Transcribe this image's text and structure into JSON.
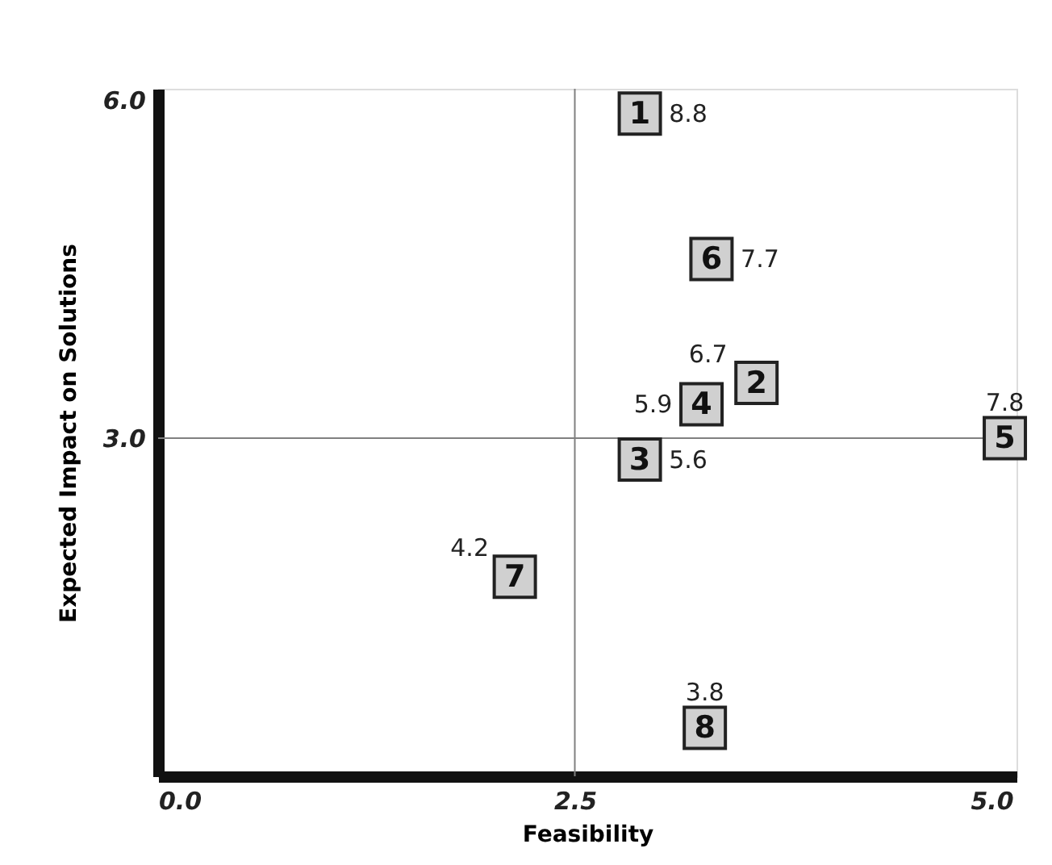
{
  "chart_data": {
    "type": "scatter",
    "xlabel": "Feasibility",
    "ylabel": "Expected Impact on Solutions",
    "series": [
      {
        "name": "1",
        "color": "#d0d0d0",
        "x": [
          2.89
        ],
        "values": [
          5.88
        ]
      },
      {
        "name": "2",
        "color": "#d0d0d0",
        "x": [
          3.59
        ],
        "values": [
          3.49
        ]
      },
      {
        "name": "3",
        "color": "#d0d0d0",
        "x": [
          2.89
        ],
        "values": [
          2.81
        ]
      },
      {
        "name": "4",
        "color": "#d0d0d0",
        "x": [
          3.26
        ],
        "values": [
          3.3
        ]
      },
      {
        "name": "5",
        "color": "#d0d0d0",
        "x": [
          5.08
        ],
        "values": [
          3.0
        ]
      },
      {
        "name": "6",
        "color": "#d0d0d0",
        "x": [
          3.32
        ],
        "values": [
          4.59
        ]
      },
      {
        "name": "7",
        "color": "#d0d0d0",
        "x": [
          2.14
        ],
        "values": [
          1.77
        ]
      },
      {
        "name": "8",
        "color": "#d0d0d0",
        "x": [
          3.28
        ],
        "values": [
          0.43
        ]
      }
    ],
    "marker": "square",
    "annotations": [
      {
        "text": "8.8",
        "x": 2.89,
        "y": 5.88
      },
      {
        "text": "6.7",
        "x": 3.59,
        "y": 3.49
      },
      {
        "text": "5.6",
        "x": 2.89,
        "y": 2.81
      },
      {
        "text": "5.9",
        "x": 3.26,
        "y": 3.3
      },
      {
        "text": "7.8",
        "x": 5.08,
        "y": 3.0
      },
      {
        "text": "7.7",
        "x": 3.32,
        "y": 4.59
      },
      {
        "text": "4.2",
        "x": 2.14,
        "y": 1.77
      },
      {
        "text": "3.8",
        "x": 3.28,
        "y": 0.43
      }
    ],
    "xlim": [
      0,
      5.15
    ],
    "ylim": [
      0,
      6.1
    ],
    "xticks": [
      {
        "value": 0,
        "label": "0.0"
      },
      2.5,
      {
        "value": 5,
        "label": "5.0"
      }
    ],
    "yticks": [
      {
        "value": 0,
        "label": null
      },
      {
        "value": 3,
        "label": "3.0"
      },
      {
        "value": 6,
        "label": "6.0"
      }
    ],
    "ref_lines": [
      {
        "axis": "x",
        "value": 2.5,
        "color": "#808080"
      },
      {
        "axis": "y",
        "value": 3.0,
        "color": "#808080"
      }
    ],
    "grid": false
  }
}
